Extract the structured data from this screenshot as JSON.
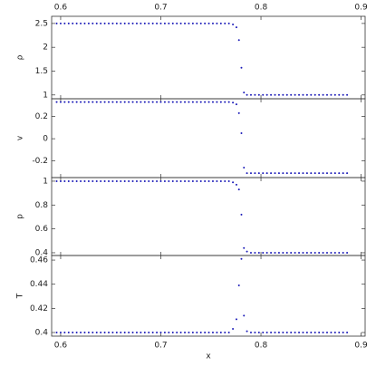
{
  "chart_data": {
    "type": "scatter",
    "xlabel": "x",
    "xlim": [
      0.591,
      0.904
    ],
    "xticks": [
      0.6,
      0.7,
      0.8,
      0.9
    ],
    "x": [
      0.596,
      0.6,
      0.604,
      0.608,
      0.612,
      0.616,
      0.62,
      0.624,
      0.628,
      0.632,
      0.636,
      0.64,
      0.644,
      0.648,
      0.652,
      0.656,
      0.66,
      0.664,
      0.668,
      0.672,
      0.676,
      0.68,
      0.684,
      0.688,
      0.692,
      0.696,
      0.7,
      0.704,
      0.708,
      0.712,
      0.716,
      0.72,
      0.724,
      0.728,
      0.732,
      0.736,
      0.74,
      0.744,
      0.748,
      0.752,
      0.756,
      0.76,
      0.764,
      0.768,
      0.772,
      0.7755,
      0.778,
      0.7805,
      0.783,
      0.786,
      0.79,
      0.794,
      0.798,
      0.802,
      0.806,
      0.81,
      0.814,
      0.818,
      0.822,
      0.826,
      0.83,
      0.834,
      0.838,
      0.842,
      0.846,
      0.85,
      0.854,
      0.858,
      0.862,
      0.866,
      0.87,
      0.874,
      0.878,
      0.882,
      0.886
    ],
    "panels": [
      {
        "ylabel": "ρ",
        "ylim": [
          0.92,
          2.65
        ],
        "yticks": [
          1,
          1.5,
          2,
          2.5
        ],
        "color": "#1a1ab8",
        "values": [
          2.5,
          2.5,
          2.5,
          2.5,
          2.5,
          2.5,
          2.5,
          2.5,
          2.5,
          2.5,
          2.5,
          2.5,
          2.5,
          2.5,
          2.5,
          2.5,
          2.5,
          2.5,
          2.5,
          2.5,
          2.5,
          2.5,
          2.5,
          2.5,
          2.5,
          2.5,
          2.5,
          2.5,
          2.5,
          2.5,
          2.5,
          2.5,
          2.5,
          2.5,
          2.5,
          2.5,
          2.5,
          2.5,
          2.5,
          2.5,
          2.5,
          2.5,
          2.5,
          2.5,
          2.48,
          2.42,
          2.15,
          1.57,
          1.05,
          1.0,
          1,
          1,
          1,
          1,
          1,
          1,
          1,
          1,
          1,
          1,
          1,
          1,
          1,
          1,
          1,
          1,
          1,
          1,
          1,
          1,
          1,
          1,
          1,
          1,
          1
        ]
      },
      {
        "ylabel": "v",
        "ylim": [
          -0.35,
          0.36
        ],
        "yticks": [
          -0.2,
          0,
          0.2
        ],
        "color": "#1a1ab8",
        "values": [
          0.33,
          0.33,
          0.33,
          0.33,
          0.33,
          0.33,
          0.33,
          0.33,
          0.33,
          0.33,
          0.33,
          0.33,
          0.33,
          0.33,
          0.33,
          0.33,
          0.33,
          0.33,
          0.33,
          0.33,
          0.33,
          0.33,
          0.33,
          0.33,
          0.33,
          0.33,
          0.33,
          0.33,
          0.33,
          0.33,
          0.33,
          0.33,
          0.33,
          0.33,
          0.33,
          0.33,
          0.33,
          0.33,
          0.33,
          0.33,
          0.33,
          0.33,
          0.33,
          0.33,
          0.325,
          0.31,
          0.23,
          0.05,
          -0.26,
          -0.31,
          -0.31,
          -0.31,
          -0.31,
          -0.31,
          -0.31,
          -0.31,
          -0.31,
          -0.31,
          -0.31,
          -0.31,
          -0.31,
          -0.31,
          -0.31,
          -0.31,
          -0.31,
          -0.31,
          -0.31,
          -0.31,
          -0.31,
          -0.31,
          -0.31,
          -0.31,
          -0.31,
          -0.31,
          -0.31
        ]
      },
      {
        "ylabel": "p",
        "ylim": [
          0.377,
          1.03
        ],
        "yticks": [
          0.4,
          0.6,
          0.8,
          1
        ],
        "color": "#1a1ab8",
        "values": [
          1,
          1,
          1,
          1,
          1,
          1,
          1,
          1,
          1,
          1,
          1,
          1,
          1,
          1,
          1,
          1,
          1,
          1,
          1,
          1,
          1,
          1,
          1,
          1,
          1,
          1,
          1,
          1,
          1,
          1,
          1,
          1,
          1,
          1,
          1,
          1,
          1,
          1,
          1,
          1,
          1,
          1,
          1,
          1,
          0.99,
          0.97,
          0.93,
          0.72,
          0.44,
          0.41,
          0.4,
          0.4,
          0.4,
          0.4,
          0.4,
          0.4,
          0.4,
          0.4,
          0.4,
          0.4,
          0.4,
          0.4,
          0.4,
          0.4,
          0.4,
          0.4,
          0.4,
          0.4,
          0.4,
          0.4,
          0.4,
          0.4,
          0.4,
          0.4,
          0.4
        ]
      },
      {
        "ylabel": "T",
        "ylim": [
          0.397,
          0.4638
        ],
        "yticks": [
          0.4,
          0.42,
          0.44,
          0.46
        ],
        "color": "#1a1ab8",
        "values": [
          0.4,
          0.4,
          0.4,
          0.4,
          0.4,
          0.4,
          0.4,
          0.4,
          0.4,
          0.4,
          0.4,
          0.4,
          0.4,
          0.4,
          0.4,
          0.4,
          0.4,
          0.4,
          0.4,
          0.4,
          0.4,
          0.4,
          0.4,
          0.4,
          0.4,
          0.4,
          0.4,
          0.4,
          0.4,
          0.4,
          0.4,
          0.4,
          0.4,
          0.4,
          0.4,
          0.4,
          0.4,
          0.4,
          0.4,
          0.4,
          0.4,
          0.4,
          0.4,
          0.4,
          0.403,
          0.411,
          0.439,
          0.461,
          0.414,
          0.401,
          0.4,
          0.4,
          0.4,
          0.4,
          0.4,
          0.4,
          0.4,
          0.4,
          0.4,
          0.4,
          0.4,
          0.4,
          0.4,
          0.4,
          0.4,
          0.4,
          0.4,
          0.4,
          0.4,
          0.4,
          0.4,
          0.4,
          0.4,
          0.4,
          0.4
        ]
      }
    ]
  }
}
